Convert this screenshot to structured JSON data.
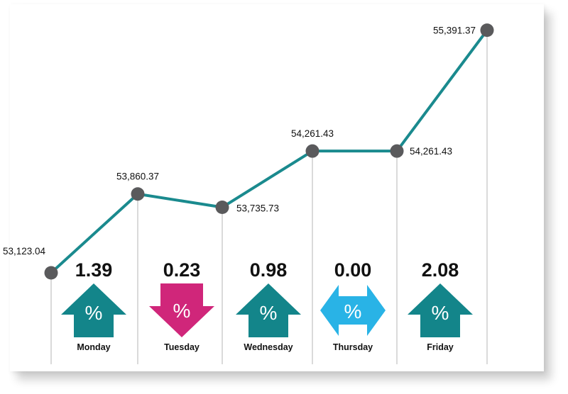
{
  "chart_data": {
    "type": "line",
    "points": [
      {
        "value": 53123.04,
        "label": "53,123.04"
      },
      {
        "value": 53860.37,
        "label": "53,860.37"
      },
      {
        "value": 53735.73,
        "label": "53,735.73"
      },
      {
        "value": 54261.43,
        "label": "54,261.43"
      },
      {
        "value": 54261.43,
        "label": "54,261.43"
      },
      {
        "value": 55391.37,
        "label": "55,391.37"
      }
    ],
    "days": [
      {
        "name": "Monday",
        "change": "1.39",
        "direction": "up"
      },
      {
        "name": "Tuesday",
        "change": "0.23",
        "direction": "down"
      },
      {
        "name": "Wednesday",
        "change": "0.98",
        "direction": "up"
      },
      {
        "name": "Thursday",
        "change": "0.00",
        "direction": "flat"
      },
      {
        "name": "Friday",
        "change": "2.08",
        "direction": "up"
      }
    ],
    "arrow_glyph": "%",
    "ylim": [
      53000,
      55500
    ],
    "grid": false,
    "legend": "none",
    "colors": {
      "line": "#1a8a8e",
      "marker": "#5a5a5c",
      "up": "#13858a",
      "down": "#d0267a",
      "flat": "#29b3e6",
      "guide": "#b5b5b5"
    }
  }
}
